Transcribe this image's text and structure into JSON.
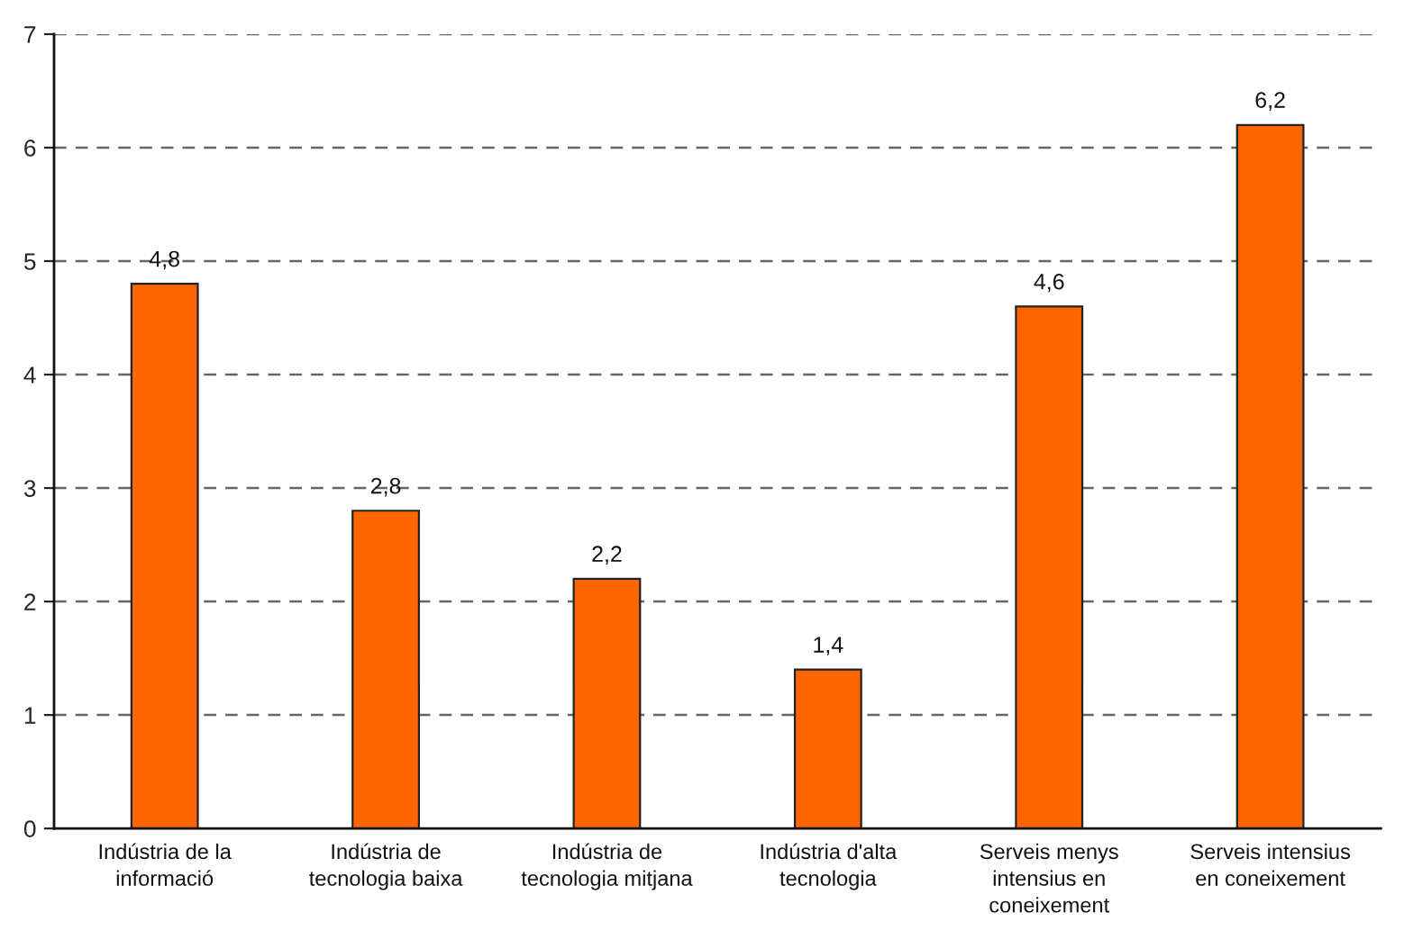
{
  "chart_data": {
    "type": "bar",
    "categories": [
      "Indústria de la\ninformació",
      "Indústria de\ntecnologia baixa",
      "Indústria de\ntecnologia mitjana",
      "Indústria d'alta\ntecnologia",
      "Serveis menys\nintensius en\nconeixement",
      "Serveis intensius\nen coneixement"
    ],
    "values": [
      4.8,
      2.8,
      2.2,
      1.4,
      4.6,
      6.2
    ],
    "color": "#ff6600",
    "value_labels": [
      "4,8",
      "2,8",
      "2,2",
      "1,4",
      "4,6",
      "6,2"
    ],
    "ylim": [
      0,
      7
    ],
    "yticks": [
      0,
      1,
      2,
      3,
      4,
      5,
      6,
      7
    ],
    "grid": "y"
  }
}
